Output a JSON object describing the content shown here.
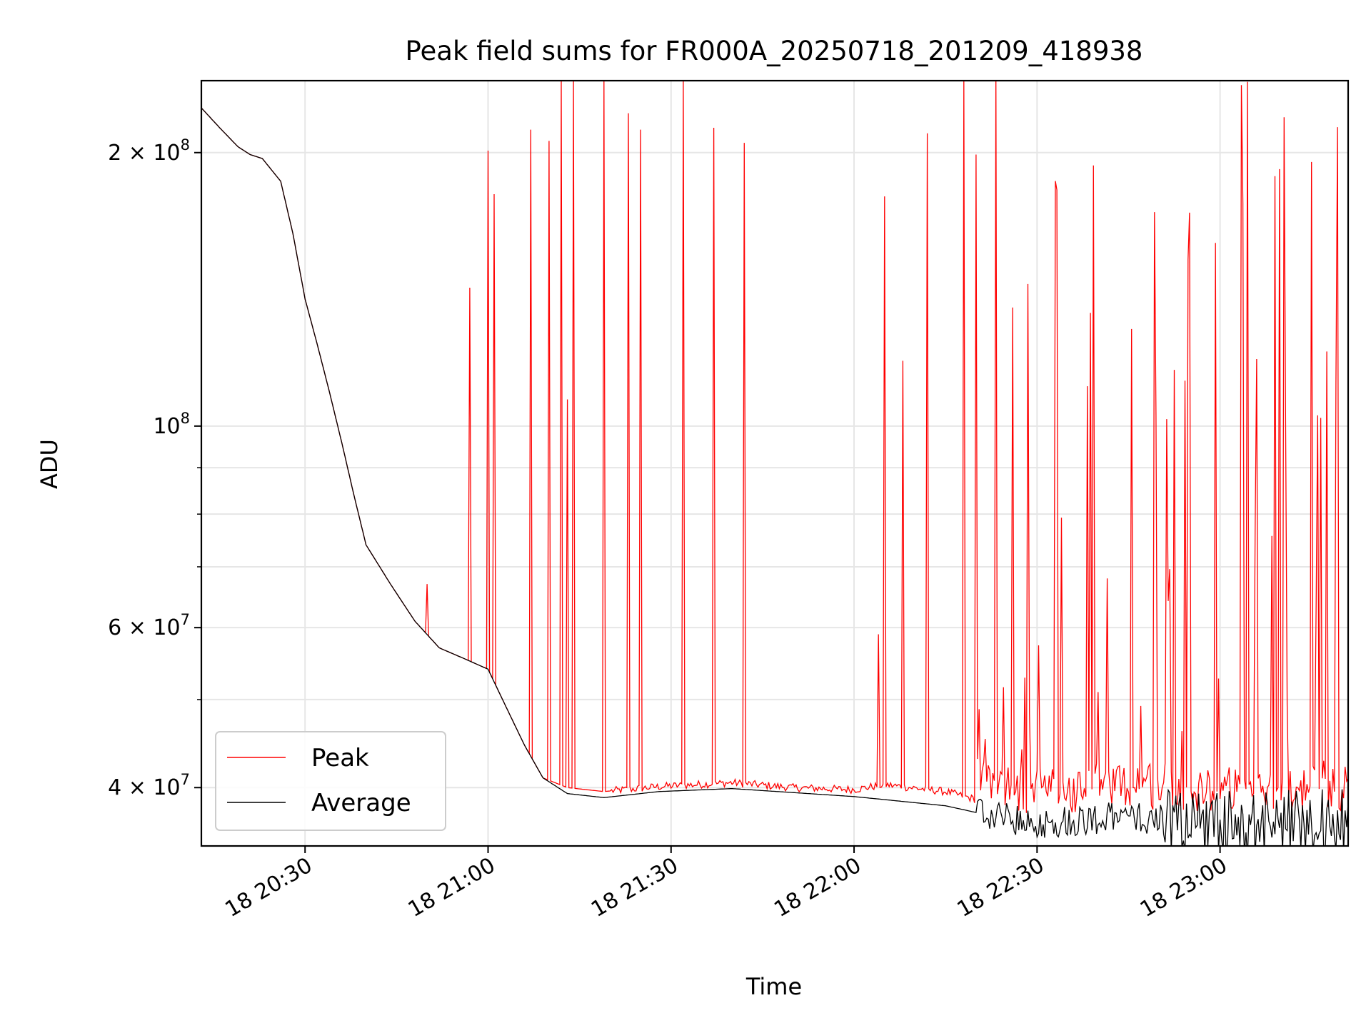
{
  "chart_data": {
    "type": "line",
    "title": "Peak field sums for FR000A_20250718_201209_418938",
    "xlabel": "Time",
    "ylabel": "ADU",
    "yscale": "log",
    "grid": true,
    "legend_position": "lower-left",
    "xlim": [
      "18 20:13",
      "18 23:21"
    ],
    "ylim": [
      34500000,
      240000000
    ],
    "x_ticks": [
      "18 20:30",
      "18 21:00",
      "18 21:30",
      "18 22:00",
      "18 22:30",
      "18 23:00"
    ],
    "y_ticks": [
      {
        "value": 200000000,
        "mantissa": "2",
        "exponent": "8"
      },
      {
        "value": 100000000,
        "mantissa": "",
        "exponent": "8"
      },
      {
        "value": 60000000,
        "mantissa": "6",
        "exponent": "7"
      },
      {
        "value": 40000000,
        "mantissa": "4",
        "exponent": "7"
      }
    ],
    "series": [
      {
        "name": "Peak",
        "color": "#ff0000",
        "baseline": [
          [
            "18 20:13",
            224000000
          ],
          [
            "18 20:16",
            213000000
          ],
          [
            "18 20:19",
            203000000
          ],
          [
            "18 20:21",
            199000000
          ],
          [
            "18 20:23",
            197000000
          ],
          [
            "18 20:26",
            186000000
          ],
          [
            "18 20:28",
            163000000
          ],
          [
            "18 20:30",
            138000000
          ],
          [
            "18 20:32",
            123000000
          ],
          [
            "18 20:34",
            109000000
          ],
          [
            "18 20:36",
            96000000
          ],
          [
            "18 20:38",
            84000000
          ],
          [
            "18 20:40",
            74000000
          ],
          [
            "18 20:44",
            67000000
          ],
          [
            "18 20:48",
            61000000
          ],
          [
            "18 20:52",
            57000000
          ],
          [
            "18 20:56",
            55500000
          ],
          [
            "18 21:00",
            54000000
          ],
          [
            "18 21:03",
            49000000
          ],
          [
            "18 21:06",
            44500000
          ],
          [
            "18 21:09",
            41000000
          ],
          [
            "18 21:13",
            40000000
          ],
          [
            "18 21:19",
            39600000
          ],
          [
            "18 21:28",
            40100000
          ],
          [
            "18 21:40",
            40500000
          ],
          [
            "18 21:50",
            40000000
          ],
          [
            "18 22:00",
            39800000
          ],
          [
            "18 22:05",
            40300000
          ],
          [
            "18 22:15",
            39600000
          ],
          [
            "18 22:22",
            38500000
          ],
          [
            "18 22:29",
            37200000
          ],
          [
            "18 22:35",
            37400000
          ],
          [
            "18 22:45",
            38200000
          ],
          [
            "18 22:55",
            37800000
          ],
          [
            "18 23:05",
            37500000
          ],
          [
            "18 23:15",
            37800000
          ],
          [
            "18 23:21",
            37700000
          ]
        ],
        "spikes": [
          [
            "18 20:50",
            67000000
          ],
          [
            "18 20:57",
            142000000
          ],
          [
            "18 21:00",
            201000000
          ],
          [
            "18 21:01",
            180000000
          ],
          [
            "18 21:07",
            212000000
          ],
          [
            "18 21:10",
            206000000
          ],
          [
            "18 21:12",
            240000000
          ],
          [
            "18 21:13",
            107000000
          ],
          [
            "18 21:14",
            240000000
          ],
          [
            "18 21:19",
            240000000
          ],
          [
            "18 21:23",
            221000000
          ],
          [
            "18 21:25",
            212000000
          ],
          [
            "18 21:32",
            240000000
          ],
          [
            "18 21:37",
            213000000
          ],
          [
            "18 21:42",
            205000000
          ],
          [
            "18 22:04",
            59000000
          ],
          [
            "18 22:05",
            179000000
          ],
          [
            "18 22:08",
            118000000
          ],
          [
            "18 22:12",
            210000000
          ],
          [
            "18 22:18",
            240000000
          ],
          [
            "18 22:20",
            199000000
          ]
        ]
      },
      {
        "name": "Average",
        "color": "#000000",
        "baseline": [
          [
            "18 20:13",
            224000000
          ],
          [
            "18 20:16",
            213000000
          ],
          [
            "18 20:19",
            203000000
          ],
          [
            "18 20:21",
            199000000
          ],
          [
            "18 20:23",
            197000000
          ],
          [
            "18 20:26",
            186000000
          ],
          [
            "18 20:28",
            163000000
          ],
          [
            "18 20:30",
            138000000
          ],
          [
            "18 20:32",
            123000000
          ],
          [
            "18 20:34",
            109000000
          ],
          [
            "18 20:36",
            96000000
          ],
          [
            "18 20:38",
            84000000
          ],
          [
            "18 20:40",
            74000000
          ],
          [
            "18 20:44",
            67000000
          ],
          [
            "18 20:48",
            61000000
          ],
          [
            "18 20:52",
            57000000
          ],
          [
            "18 20:56",
            55500000
          ],
          [
            "18 21:00",
            54000000
          ],
          [
            "18 21:03",
            49000000
          ],
          [
            "18 21:06",
            44500000
          ],
          [
            "18 21:09",
            41000000
          ],
          [
            "18 21:13",
            39400000
          ],
          [
            "18 21:19",
            39000000
          ],
          [
            "18 21:28",
            39600000
          ],
          [
            "18 21:40",
            39900000
          ],
          [
            "18 21:50",
            39500000
          ],
          [
            "18 22:00",
            39100000
          ],
          [
            "18 22:05",
            38800000
          ],
          [
            "18 22:15",
            38200000
          ],
          [
            "18 22:22",
            37300000
          ],
          [
            "18 22:29",
            36300000
          ],
          [
            "18 22:35",
            36700000
          ],
          [
            "18 22:45",
            37000000
          ],
          [
            "18 22:55",
            36500000
          ],
          [
            "18 23:05",
            36200000
          ],
          [
            "18 23:15",
            36500000
          ],
          [
            "18 23:21",
            36400000
          ]
        ]
      }
    ]
  }
}
